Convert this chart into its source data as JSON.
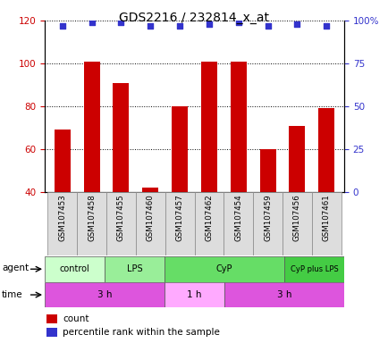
{
  "title": "GDS2216 / 232814_x_at",
  "samples": [
    "GSM107453",
    "GSM107458",
    "GSM107455",
    "GSM107460",
    "GSM107457",
    "GSM107462",
    "GSM107454",
    "GSM107459",
    "GSM107456",
    "GSM107461"
  ],
  "counts": [
    69,
    101,
    91,
    42,
    80,
    101,
    101,
    60,
    71,
    79
  ],
  "percentiles": [
    97,
    99,
    99,
    97,
    97,
    98,
    99,
    97,
    98,
    97
  ],
  "ylim_left": [
    40,
    120
  ],
  "ylim_right": [
    0,
    100
  ],
  "bar_color": "#cc0000",
  "dot_color": "#3333cc",
  "grid_color": "#000000",
  "agent_groups": [
    {
      "label": "control",
      "start": 0,
      "end": 2,
      "color": "#ccffcc"
    },
    {
      "label": "LPS",
      "start": 2,
      "end": 4,
      "color": "#99ee99"
    },
    {
      "label": "CyP",
      "start": 4,
      "end": 8,
      "color": "#66dd66"
    },
    {
      "label": "CyP plus LPS",
      "start": 8,
      "end": 10,
      "color": "#44cc44"
    }
  ],
  "time_groups": [
    {
      "label": "3 h",
      "start": 0,
      "end": 4,
      "color": "#dd55dd"
    },
    {
      "label": "1 h",
      "start": 4,
      "end": 6,
      "color": "#ffaaff"
    },
    {
      "label": "3 h",
      "start": 6,
      "end": 10,
      "color": "#dd55dd"
    }
  ],
  "title_fontsize": 10,
  "ylabel_left_color": "#cc0000",
  "ylabel_right_color": "#3333cc",
  "yticks_left": [
    40,
    60,
    80,
    100,
    120
  ],
  "yticks_right": [
    0,
    25,
    50,
    75,
    100
  ],
  "ytick_right_labels": [
    "0",
    "25",
    "50",
    "75",
    "100%"
  ]
}
